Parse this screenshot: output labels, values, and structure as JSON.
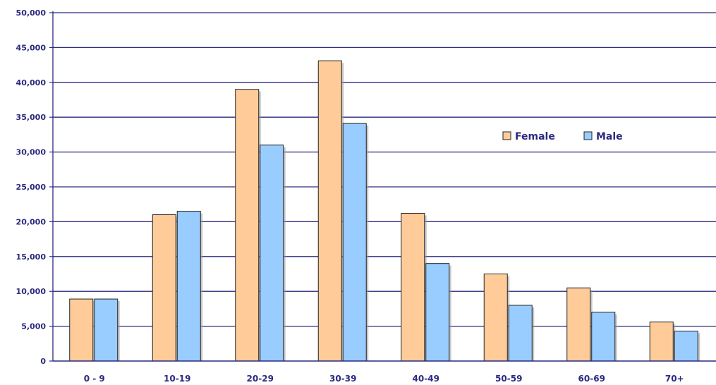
{
  "chart_data": {
    "type": "bar",
    "categories": [
      "0 - 9",
      "10-19",
      "20-29",
      "30-39",
      "40-49",
      "50-59",
      "60-69",
      "70+"
    ],
    "series": [
      {
        "name": "Female",
        "color": "#FFCC99",
        "values": [
          8900,
          21000,
          39000,
          43100,
          21200,
          12500,
          10500,
          5600
        ]
      },
      {
        "name": "Male",
        "color": "#99CCFF",
        "values": [
          8900,
          21500,
          31000,
          34100,
          14000,
          8000,
          7000,
          4300
        ]
      }
    ],
    "y_tick_labels": [
      "0",
      "5,000",
      "10,000",
      "15,000",
      "20,000",
      "25,000",
      "30,000",
      "35,000",
      "40,000",
      "45,000",
      "50,000"
    ],
    "ylim": [
      0,
      50000
    ],
    "y_step": 5000,
    "grid": true,
    "grid_color": "#2a2a80",
    "legend_position": "right"
  }
}
